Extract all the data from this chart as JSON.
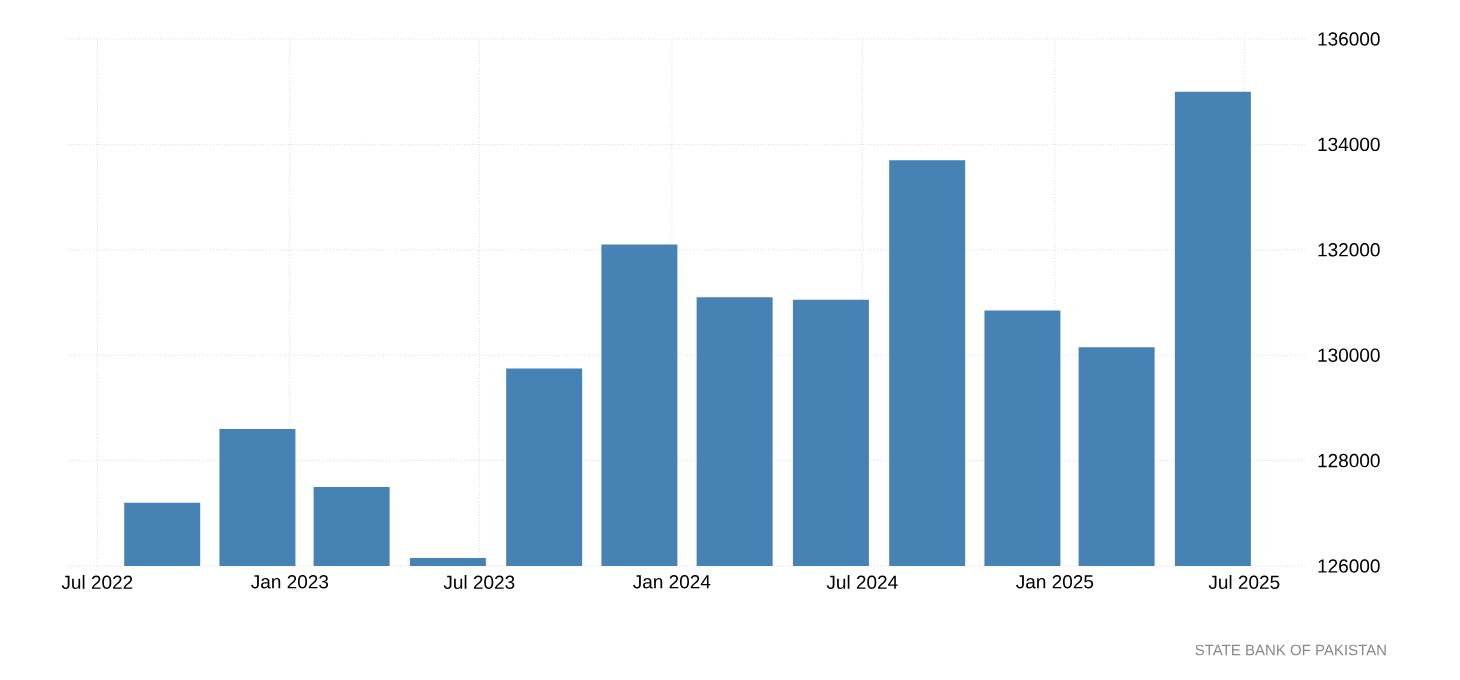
{
  "chart_data": {
    "type": "bar",
    "x": [
      "2022-09",
      "2022-12",
      "2023-03",
      "2023-06",
      "2023-09",
      "2023-12",
      "2024-03",
      "2024-06",
      "2024-09",
      "2024-12",
      "2025-03",
      "2025-06"
    ],
    "values": [
      127200,
      128600,
      127500,
      126150,
      129750,
      132100,
      131100,
      131050,
      133700,
      130850,
      130150,
      135000
    ],
    "color": "#4682b4",
    "xlim": [
      "2022-06-03",
      "2025-08-29"
    ],
    "xticks": [
      {
        "value": "2022-07",
        "label": "Jul 2022"
      },
      {
        "value": "2023-01",
        "label": "Jan 2023"
      },
      {
        "value": "2023-07",
        "label": "Jul 2023"
      },
      {
        "value": "2024-01",
        "label": "Jan 2024"
      },
      {
        "value": "2024-07",
        "label": "Jul 2024"
      },
      {
        "value": "2025-01",
        "label": "Jan 2025"
      },
      {
        "value": "2025-07",
        "label": "Jul 2025"
      }
    ],
    "ylim": [
      126000,
      136000
    ],
    "yticks": [
      126000,
      128000,
      130000,
      132000,
      134000,
      136000
    ],
    "grid": true,
    "annotations": [
      "STATE BANK OF PAKISTAN"
    ]
  }
}
